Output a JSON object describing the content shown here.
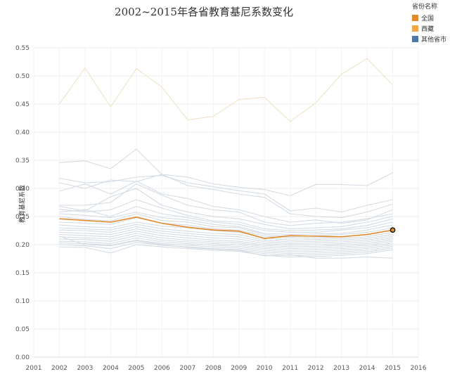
{
  "chart_data": {
    "type": "line",
    "title": "2002~2015年各省教育基尼系数变化",
    "xlabel": "",
    "ylabel": "教育基尼系数",
    "x": [
      2002,
      2003,
      2004,
      2005,
      2006,
      2007,
      2008,
      2009,
      2010,
      2011,
      2012,
      2013,
      2014,
      2015
    ],
    "x_ticks": [
      "2001",
      "2002",
      "2003",
      "2004",
      "2005",
      "2006",
      "2007",
      "2008",
      "2009",
      "2010",
      "2011",
      "2012",
      "2013",
      "2014",
      "2015",
      "2016"
    ],
    "xlim": [
      2001,
      2016
    ],
    "y_ticks": [
      "0.00",
      "0.05",
      "0.10",
      "0.15",
      "0.20",
      "0.25",
      "0.30",
      "0.35",
      "0.40",
      "0.45",
      "0.50",
      "0.55"
    ],
    "ylim": [
      0,
      0.55
    ],
    "grid": true,
    "legend_title": "省份名称",
    "legend_position": "top-right",
    "legend": [
      {
        "label": "全国",
        "color": "#e08a2c"
      },
      {
        "label": "西藏",
        "color": "#f0c070"
      },
      {
        "label": "其他省市",
        "color": "#4e79a7"
      }
    ],
    "series": [
      {
        "name": "全国",
        "color": "#e08a2c",
        "highlight": true,
        "values": [
          0.246,
          0.243,
          0.24,
          0.249,
          0.238,
          0.231,
          0.226,
          0.224,
          0.211,
          0.216,
          0.215,
          0.214,
          0.218,
          0.226
        ]
      },
      {
        "name": "西藏",
        "color": "#efe3c7",
        "values": [
          0.45,
          0.514,
          0.445,
          0.513,
          0.48,
          0.422,
          0.428,
          0.458,
          0.462,
          0.419,
          0.452,
          0.503,
          0.531,
          0.484
        ]
      },
      {
        "values": [
          0.346,
          0.349,
          0.335,
          0.37,
          0.325,
          0.32,
          0.308,
          0.302,
          0.298,
          0.287,
          0.307,
          0.307,
          0.305,
          0.328
        ]
      },
      {
        "values": [
          0.318,
          0.31,
          0.312,
          0.32,
          0.323,
          0.31,
          0.303,
          0.296,
          0.29,
          0.26,
          0.265,
          0.258,
          0.27,
          0.28
        ]
      },
      {
        "values": [
          0.31,
          0.3,
          0.315,
          0.312,
          0.325,
          0.305,
          0.298,
          0.29,
          0.284,
          0.255,
          0.25,
          0.248,
          0.258,
          0.272
        ]
      },
      {
        "values": [
          0.295,
          0.308,
          0.29,
          0.313,
          0.29,
          0.282,
          0.268,
          0.262,
          0.25,
          0.24,
          0.244,
          0.238,
          0.244,
          0.262
        ]
      },
      {
        "values": [
          0.27,
          0.27,
          0.275,
          0.308,
          0.288,
          0.27,
          0.262,
          0.258,
          0.24,
          0.234,
          0.238,
          0.24,
          0.246,
          0.255
        ]
      },
      {
        "values": [
          0.268,
          0.26,
          0.285,
          0.3,
          0.27,
          0.258,
          0.25,
          0.246,
          0.236,
          0.228,
          0.23,
          0.232,
          0.24,
          0.25
        ]
      },
      {
        "values": [
          0.263,
          0.258,
          0.262,
          0.28,
          0.265,
          0.252,
          0.242,
          0.24,
          0.228,
          0.225,
          0.226,
          0.228,
          0.234,
          0.246
        ]
      },
      {
        "values": [
          0.258,
          0.262,
          0.25,
          0.268,
          0.255,
          0.248,
          0.24,
          0.236,
          0.225,
          0.222,
          0.222,
          0.226,
          0.23,
          0.24
        ]
      },
      {
        "values": [
          0.255,
          0.252,
          0.248,
          0.258,
          0.248,
          0.244,
          0.236,
          0.232,
          0.22,
          0.218,
          0.219,
          0.22,
          0.226,
          0.235
        ]
      },
      {
        "values": [
          0.25,
          0.245,
          0.242,
          0.255,
          0.243,
          0.24,
          0.232,
          0.23,
          0.218,
          0.214,
          0.216,
          0.218,
          0.222,
          0.23
        ]
      },
      {
        "values": [
          0.24,
          0.238,
          0.236,
          0.248,
          0.238,
          0.235,
          0.228,
          0.226,
          0.215,
          0.212,
          0.212,
          0.214,
          0.218,
          0.226
        ]
      },
      {
        "values": [
          0.235,
          0.232,
          0.23,
          0.24,
          0.233,
          0.23,
          0.225,
          0.222,
          0.212,
          0.208,
          0.209,
          0.211,
          0.214,
          0.222
        ]
      },
      {
        "values": [
          0.23,
          0.228,
          0.226,
          0.236,
          0.228,
          0.224,
          0.22,
          0.218,
          0.208,
          0.205,
          0.206,
          0.208,
          0.211,
          0.218
        ]
      },
      {
        "values": [
          0.226,
          0.225,
          0.222,
          0.232,
          0.224,
          0.22,
          0.216,
          0.214,
          0.205,
          0.202,
          0.203,
          0.205,
          0.208,
          0.215
        ]
      },
      {
        "values": [
          0.222,
          0.22,
          0.218,
          0.228,
          0.22,
          0.216,
          0.212,
          0.21,
          0.202,
          0.199,
          0.2,
          0.202,
          0.205,
          0.212
        ]
      },
      {
        "values": [
          0.218,
          0.216,
          0.214,
          0.224,
          0.216,
          0.212,
          0.208,
          0.206,
          0.199,
          0.196,
          0.197,
          0.199,
          0.202,
          0.209
        ]
      },
      {
        "values": [
          0.214,
          0.212,
          0.21,
          0.22,
          0.212,
          0.208,
          0.205,
          0.203,
          0.196,
          0.193,
          0.194,
          0.196,
          0.199,
          0.206
        ]
      },
      {
        "values": [
          0.21,
          0.209,
          0.206,
          0.216,
          0.208,
          0.205,
          0.202,
          0.2,
          0.193,
          0.19,
          0.191,
          0.193,
          0.196,
          0.203
        ]
      },
      {
        "values": [
          0.206,
          0.205,
          0.202,
          0.212,
          0.205,
          0.202,
          0.199,
          0.197,
          0.19,
          0.187,
          0.188,
          0.19,
          0.193,
          0.2
        ]
      },
      {
        "values": [
          0.203,
          0.202,
          0.199,
          0.208,
          0.202,
          0.199,
          0.196,
          0.194,
          0.187,
          0.184,
          0.185,
          0.187,
          0.19,
          0.197
        ]
      },
      {
        "values": [
          0.2,
          0.198,
          0.193,
          0.204,
          0.199,
          0.196,
          0.193,
          0.191,
          0.184,
          0.181,
          0.182,
          0.184,
          0.187,
          0.194
        ]
      },
      {
        "values": [
          0.196,
          0.195,
          0.185,
          0.2,
          0.196,
          0.193,
          0.19,
          0.188,
          0.181,
          0.178,
          0.179,
          0.181,
          0.184,
          0.191
        ]
      },
      {
        "values": [
          0.215,
          0.2,
          0.198,
          0.207,
          0.2,
          0.195,
          0.192,
          0.19,
          0.18,
          0.182,
          0.176,
          0.176,
          0.178,
          0.176
        ]
      }
    ]
  }
}
